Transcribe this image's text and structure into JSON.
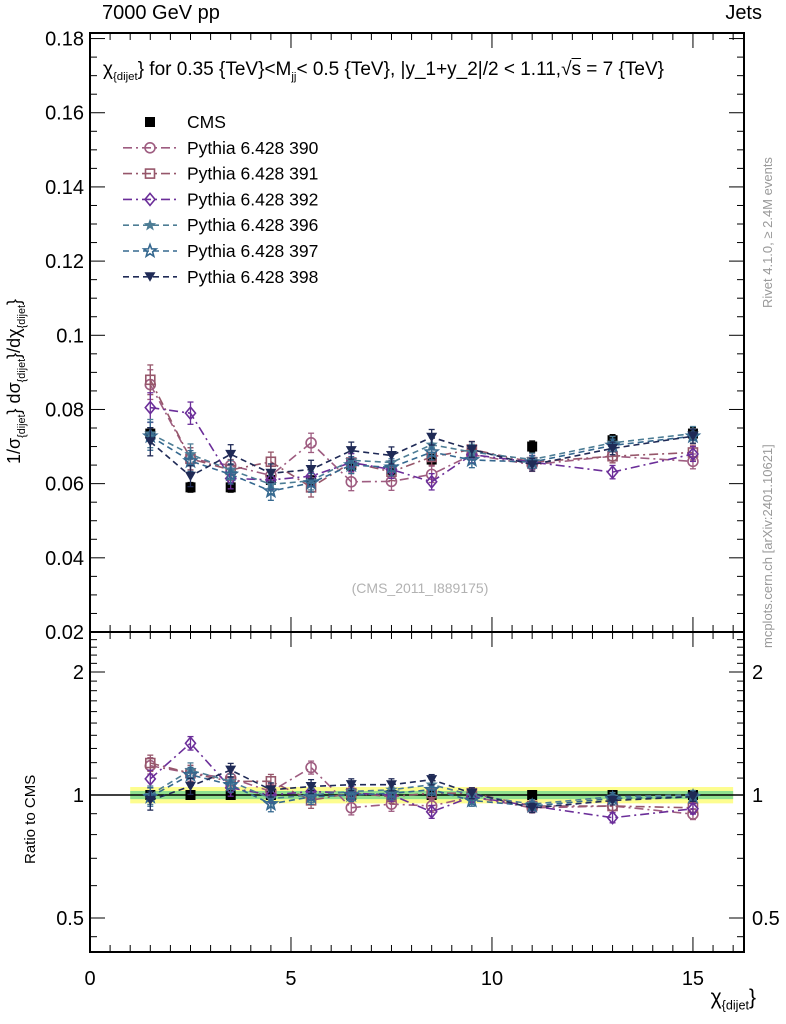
{
  "header": {
    "left": "7000 GeV pp",
    "right": "Jets"
  },
  "plot_title_segments": [
    {
      "t": "χ"
    },
    {
      "s": "{dijet"
    },
    {
      "t": "} for 0.35 {TeV}<M"
    },
    {
      "s": "jj"
    },
    {
      "t": "< 0.5 {TeV}, |y_1+y_2|/2 < 1.11,"
    },
    {
      "t": "√"
    },
    {
      "o": "s"
    },
    {
      "t": " = 7 {TeV}"
    }
  ],
  "y_title_segments": [
    {
      "t": "1/σ"
    },
    {
      "s": "{dijet"
    },
    {
      "t": "} dσ"
    },
    {
      "s": "{dijet"
    },
    {
      "t": "}/dχ"
    },
    {
      "s": "{dijet"
    },
    {
      "t": "}"
    }
  ],
  "x_title_segments": [
    {
      "t": "χ"
    },
    {
      "s": "{dijet"
    },
    {
      "t": "}"
    }
  ],
  "side_notes": {
    "top": "Rivet 4.1.0, ≥ 2.4M events",
    "bottom": "mcplots.cern.ch [arXiv:2401.10621]"
  },
  "watermark": "(CMS_2011_I889175)",
  "axes": {
    "main": {
      "y_tick_labels": [
        "0.18",
        "0.16",
        "0.14",
        "0.12",
        "0.1",
        "0.08",
        "0.06",
        "0.04",
        "0.02"
      ],
      "y_tick_values": [
        0.18,
        0.16,
        0.14,
        0.12,
        0.1,
        0.08,
        0.06,
        0.04,
        0.02
      ]
    },
    "x": {
      "tick_labels": [
        "0",
        "5",
        "10",
        "15"
      ],
      "tick_values": [
        0,
        5,
        10,
        15
      ]
    },
    "ratio": {
      "y_label": "Ratio to CMS",
      "tick_labels": [
        "2",
        "1",
        "0.5"
      ],
      "tick_values": [
        2,
        1,
        0.5
      ]
    }
  },
  "chart_data": {
    "type": "line",
    "title": "χ_{dijet} for 0.35 {TeV} < M_jj < 0.5 {TeV}, |y_1+y_2|/2 < 1.11, √s = 7 {TeV}",
    "xlabel": "χ_{dijet}",
    "ylabel": "1/σ_{dijet} dσ_{dijet}/dχ_{dijet}",
    "ratio_ylabel": "Ratio to CMS",
    "xlim": [
      0,
      16.27
    ],
    "main_ylim": [
      0.02,
      0.1815
    ],
    "ratio_ylim": [
      0.413,
      2.51
    ],
    "ratio_scale": "log",
    "x": [
      1.5,
      2.5,
      3.5,
      4.5,
      5.5,
      6.5,
      7.5,
      8.5,
      9.5,
      11,
      13,
      15
    ],
    "series": [
      {
        "label": "CMS",
        "marker": "square-filled",
        "color": "#000000",
        "line": "none",
        "values": [
          0.0735,
          0.059,
          0.059,
          0.061,
          0.0608,
          0.065,
          0.0638,
          0.0665,
          0.0685,
          0.07,
          0.0717,
          0.0735
        ],
        "errors": [
          0.0016,
          0.0013,
          0.0013,
          0.0013,
          0.0013,
          0.0014,
          0.0014,
          0.0014,
          0.0014,
          0.0015,
          0.0015,
          0.0016
        ]
      },
      {
        "label": "Pythia 6.428 390",
        "marker": "circle-open",
        "color": "#9e5c80",
        "line": "dashdot",
        "values": [
          0.0867,
          0.0667,
          0.0649,
          0.0622,
          0.071,
          0.0605,
          0.0606,
          0.0625,
          0.0678,
          0.0651,
          0.0674,
          0.066
        ],
        "errors": [
          0.004,
          0.003,
          0.0028,
          0.0026,
          0.0026,
          0.0024,
          0.0024,
          0.0022,
          0.0022,
          0.0018,
          0.0018,
          0.002
        ]
      },
      {
        "label": "Pythia 6.428 391",
        "marker": "square-open",
        "color": "#96566a",
        "line": "dashdot",
        "values": [
          0.088,
          0.0667,
          0.0637,
          0.0659,
          0.059,
          0.0657,
          0.0632,
          0.0672,
          0.0692,
          0.0658,
          0.0674,
          0.0684
        ],
        "errors": [
          0.004,
          0.003,
          0.0028,
          0.0026,
          0.0026,
          0.0024,
          0.0024,
          0.0022,
          0.0022,
          0.0018,
          0.0018,
          0.002
        ]
      },
      {
        "label": "Pythia 6.428 392",
        "marker": "diamond-open",
        "color": "#6b2e99",
        "line": "dashdot",
        "values": [
          0.0805,
          0.079,
          0.0614,
          0.061,
          0.062,
          0.0657,
          0.0638,
          0.0605,
          0.0678,
          0.0658,
          0.0631,
          0.068
        ],
        "errors": [
          0.004,
          0.003,
          0.0028,
          0.0026,
          0.0026,
          0.0024,
          0.0024,
          0.0022,
          0.0022,
          0.0018,
          0.0018,
          0.002
        ]
      },
      {
        "label": "Pythia 6.428 396",
        "marker": "star-filled",
        "color": "#4d7d95",
        "line": "dashed",
        "values": [
          0.0735,
          0.0679,
          0.0637,
          0.0598,
          0.0608,
          0.0663,
          0.0657,
          0.0705,
          0.0685,
          0.0665,
          0.071,
          0.0735
        ],
        "errors": [
          0.0038,
          0.0028,
          0.0026,
          0.0025,
          0.0025,
          0.0023,
          0.0023,
          0.0021,
          0.0021,
          0.0017,
          0.0017,
          0.0019
        ]
      },
      {
        "label": "Pythia 6.428 397",
        "marker": "star-open",
        "color": "#35688f",
        "line": "dashed",
        "values": [
          0.0728,
          0.0661,
          0.0625,
          0.058,
          0.0602,
          0.065,
          0.0644,
          0.0685,
          0.0664,
          0.0658,
          0.0703,
          0.0728
        ],
        "errors": [
          0.0038,
          0.0028,
          0.0026,
          0.0025,
          0.0025,
          0.0023,
          0.0023,
          0.0021,
          0.0021,
          0.0017,
          0.0017,
          0.0019
        ]
      },
      {
        "label": "Pythia 6.428 398",
        "marker": "triangle-down-filled",
        "color": "#1f2a56",
        "line": "dashed",
        "values": [
          0.0713,
          0.062,
          0.0679,
          0.0628,
          0.0638,
          0.0689,
          0.0676,
          0.0725,
          0.0692,
          0.0651,
          0.0695,
          0.0728
        ],
        "errors": [
          0.0038,
          0.0028,
          0.0026,
          0.0025,
          0.0025,
          0.0023,
          0.0023,
          0.0021,
          0.0021,
          0.0017,
          0.0017,
          0.0019
        ]
      }
    ],
    "ratio_band": {
      "x_range": [
        1,
        16
      ],
      "outer": [
        0.954,
        1.046
      ],
      "outer_color": "#fdfd8f",
      "inner": [
        0.977,
        1.023
      ],
      "inner_color": "#8fe08f"
    }
  }
}
